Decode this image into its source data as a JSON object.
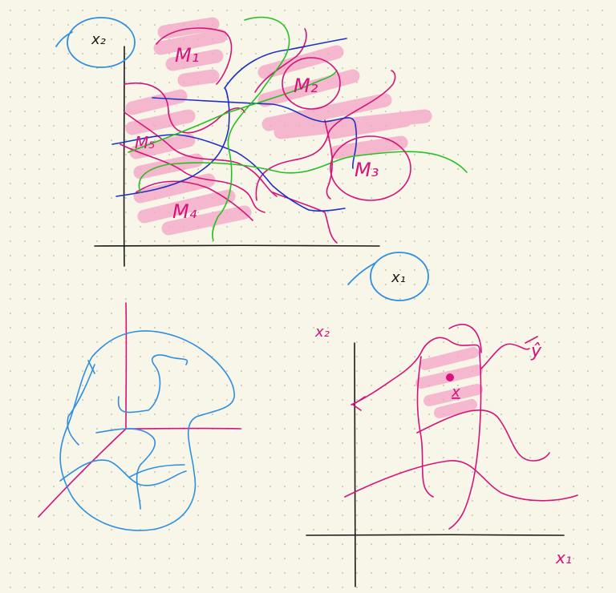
{
  "colors": {
    "background": "#f8f5e9",
    "dots": "#cfcab8",
    "ink_black": "#1a1a1a",
    "magenta": "#d4147a",
    "blue_highlight": "#2e8fe0",
    "dark_blue": "#1f30c4",
    "green": "#27c023",
    "pink_highlight": "#f4a3c6"
  },
  "sketch_top": {
    "axis_y_label": "x₂",
    "axis_x_label": "x₁",
    "regions": [
      {
        "label": "M₁"
      },
      {
        "label": "M₂"
      },
      {
        "label": "M₃"
      },
      {
        "label": "M₄"
      },
      {
        "label": "M₅"
      }
    ]
  },
  "sketch_bottom_right": {
    "axis_y_label": "x₂",
    "axis_x_label": "x₁",
    "point_label": "x",
    "output_label": "ŷ"
  }
}
